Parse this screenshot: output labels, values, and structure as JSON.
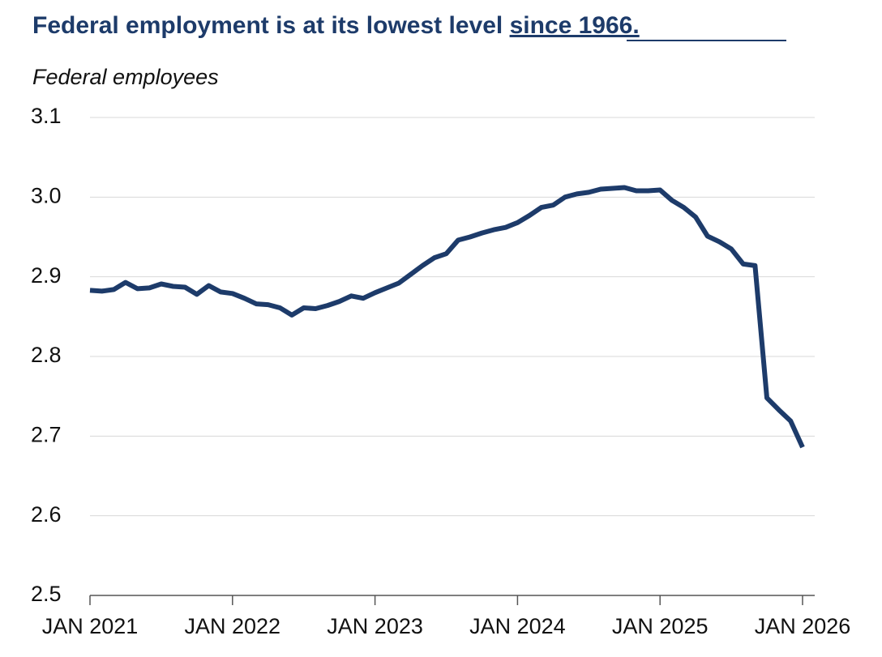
{
  "chart_data": {
    "type": "line",
    "title": "Federal employment is at its lowest level",
    "title_link": "since 1966.",
    "y_label": "Federal employees",
    "x": [
      "2021-01",
      "2021-02",
      "2021-03",
      "2021-04",
      "2021-05",
      "2021-06",
      "2021-07",
      "2021-08",
      "2021-09",
      "2021-10",
      "2021-11",
      "2021-12",
      "2022-01",
      "2022-02",
      "2022-03",
      "2022-04",
      "2022-05",
      "2022-06",
      "2022-07",
      "2022-08",
      "2022-09",
      "2022-10",
      "2022-11",
      "2022-12",
      "2023-01",
      "2023-02",
      "2023-03",
      "2023-04",
      "2023-05",
      "2023-06",
      "2023-07",
      "2023-08",
      "2023-09",
      "2023-10",
      "2023-11",
      "2023-12",
      "2024-01",
      "2024-02",
      "2024-03",
      "2024-04",
      "2024-05",
      "2024-06",
      "2024-07",
      "2024-08",
      "2024-09",
      "2024-10",
      "2024-11",
      "2024-12",
      "2025-01",
      "2025-02",
      "2025-03",
      "2025-04",
      "2025-05",
      "2025-06",
      "2025-07",
      "2025-08",
      "2025-09",
      "2025-10",
      "2025-11",
      "2025-12",
      "2026-01"
    ],
    "series": [
      {
        "name": "Federal employees",
        "color": "#1d3b6a",
        "values": [
          2.883,
          2.882,
          2.884,
          2.893,
          2.885,
          2.886,
          2.891,
          2.888,
          2.887,
          2.878,
          2.889,
          2.881,
          2.879,
          2.873,
          2.866,
          2.865,
          2.861,
          2.852,
          2.861,
          2.86,
          2.864,
          2.869,
          2.876,
          2.873,
          2.88,
          2.886,
          2.892,
          2.903,
          2.914,
          2.924,
          2.929,
          2.946,
          2.95,
          2.955,
          2.959,
          2.962,
          2.968,
          2.977,
          2.987,
          2.99,
          3.0,
          3.004,
          3.006,
          3.01,
          3.011,
          3.012,
          3.008,
          3.008,
          3.009,
          2.996,
          2.987,
          2.975,
          2.951,
          2.944,
          2.935,
          2.916,
          2.914,
          2.748,
          2.733,
          2.719,
          2.686
        ]
      }
    ],
    "xticks": [
      {
        "value": "2021-01",
        "label": "JAN 2021"
      },
      {
        "value": "2022-01",
        "label": "JAN 2022"
      },
      {
        "value": "2023-01",
        "label": "JAN 2023"
      },
      {
        "value": "2024-01",
        "label": "JAN 2024"
      },
      {
        "value": "2025-01",
        "label": "JAN 2025"
      },
      {
        "value": "2026-01",
        "label": "JAN 2026"
      }
    ],
    "ylim": [
      2.5,
      3.1
    ],
    "yticks": [
      2.5,
      2.6,
      2.7,
      2.8,
      2.9,
      {
        "value": 3,
        "label": "3.0"
      },
      3.1
    ],
    "grid": true
  }
}
